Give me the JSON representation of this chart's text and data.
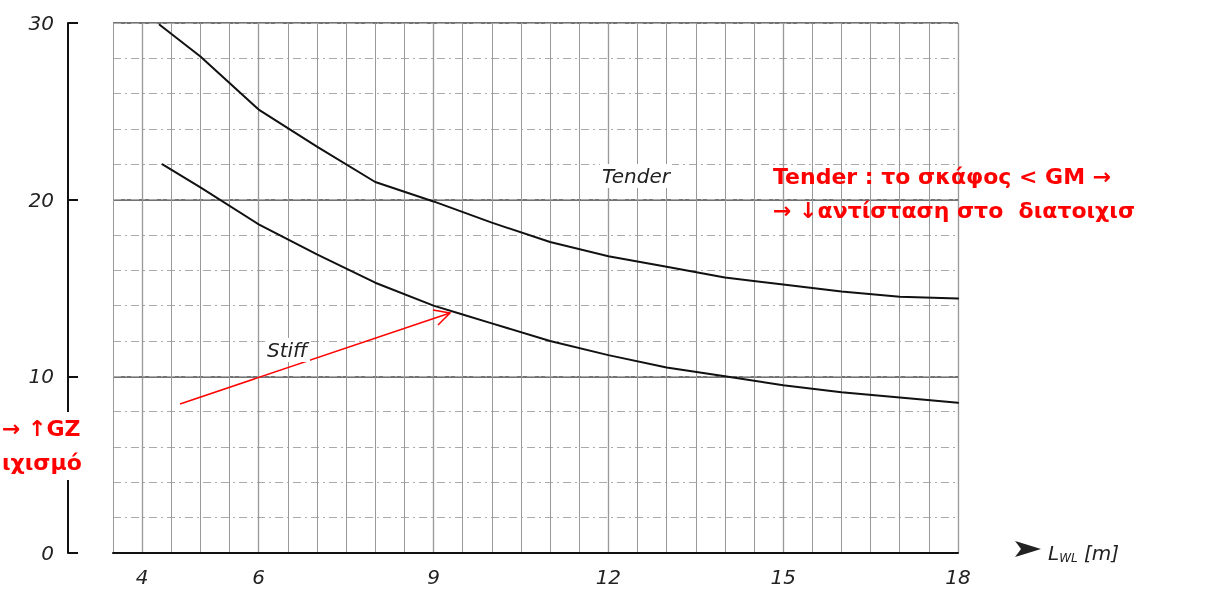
{
  "chart_data": {
    "type": "line",
    "xlabel": "L$_{WL}$ [m]",
    "xlim": [
      3.5,
      18
    ],
    "xticks": [
      4,
      6,
      9,
      12,
      15,
      18
    ],
    "ylim": [
      0,
      30
    ],
    "yticks": [
      0,
      10,
      20,
      30
    ],
    "grid": true,
    "marker": "none",
    "line_style": "solid",
    "series": [
      {
        "color": "#111111",
        "x": [
          4.3,
          5,
          6,
          7,
          8,
          9,
          10,
          11,
          12,
          13,
          14,
          15,
          16,
          17,
          18
        ],
        "values": [
          29.9,
          28.1,
          25.1,
          23.0,
          21.0,
          19.9,
          18.7,
          17.6,
          16.8,
          16.2,
          15.6,
          15.2,
          14.8,
          14.5,
          14.4
        ]
      },
      {
        "color": "#111111",
        "x": [
          4.35,
          5,
          6,
          7,
          8,
          9,
          9.5,
          10,
          11,
          12,
          13,
          14,
          15,
          16,
          17,
          18
        ],
        "values": [
          22.0,
          20.7,
          18.6,
          16.9,
          15.3,
          14.0,
          13.5,
          13.0,
          12.0,
          11.2,
          10.5,
          10.0,
          9.5,
          9.1,
          8.8,
          8.5
        ]
      }
    ],
    "annotations": [
      "Tender",
      "Stiff",
      "Tender : το σκάφος < GM →\n→ ↓αντίσταση στο  διατοιχισ",
      "→ ↑GZ\nιχισμό"
    ]
  }
}
